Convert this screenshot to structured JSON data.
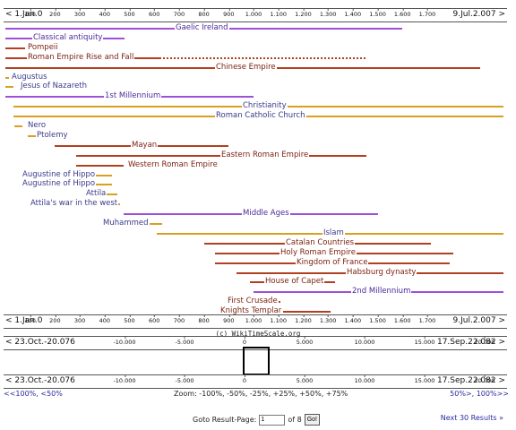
{
  "timeline": {
    "top_axis": {
      "left": "< 1.Jan.0",
      "right": "9.Jul.2.007 >",
      "ticks": [
        "100",
        "200",
        "300",
        "400",
        "500",
        "600",
        "700",
        "800",
        "900",
        "1.000",
        "1.100",
        "1.200",
        "1.300",
        "1.400",
        "1.500",
        "1.600",
        "1.700"
      ]
    },
    "bottom_axis": {
      "left": "< 1.Jan.0",
      "right": "9.Jul.2.007 >",
      "ticks": [
        "100",
        "200",
        "300",
        "400",
        "500",
        "600",
        "700",
        "800",
        "900",
        "1.000",
        "1.100",
        "1.200",
        "1.300",
        "1.400",
        "1.500",
        "1.600",
        "1.700"
      ]
    },
    "copyright": "(c) WikiTimeScale.org",
    "events": [
      {
        "label": "Gaelic Ireland",
        "color": "#a050d8",
        "start": 0,
        "end": 1600,
        "dashed_after": null
      },
      {
        "label": "Classical antiquity",
        "color": "#a050d8",
        "start": 0,
        "end": 480
      },
      {
        "label": "Pompeii",
        "color": "#b04020",
        "start": 0,
        "end": 79
      },
      {
        "label": "Roman Empire Rise and Fall",
        "color": "#b04020",
        "start": 0,
        "end": 620,
        "dashed_to": 1453
      },
      {
        "label": "Chinese Empire",
        "color": "#b04020",
        "start": 0,
        "end": 1912
      },
      {
        "label": "Augustus",
        "color": "#d8a020",
        "start": 0,
        "end": 14
      },
      {
        "label": "Jesus of Nazareth",
        "color": "#d8a020",
        "start": 0,
        "end": 33
      },
      {
        "label": "1st Millennium",
        "color": "#a050d8",
        "start": 1,
        "end": 1000
      },
      {
        "label": "Christianity",
        "color": "#d8a020",
        "start": 33,
        "end": 2007
      },
      {
        "label": "Roman Catholic Church",
        "color": "#d8a020",
        "start": 33,
        "end": 2007
      },
      {
        "label": "Nero",
        "color": "#d8a020",
        "start": 37,
        "end": 68
      },
      {
        "label": "Ptolemy",
        "color": "#d8a020",
        "start": 90,
        "end": 168
      },
      {
        "label": "Mayan",
        "color": "#b04020",
        "start": 200,
        "end": 900
      },
      {
        "label": "Eastern Roman Empire",
        "color": "#b04020",
        "start": 286,
        "end": 1453
      },
      {
        "label": "Western Roman Empire",
        "color": "#b04020",
        "start": 286,
        "end": 476
      },
      {
        "label": "Augustine of Hippo",
        "color": "#d8a020",
        "start": 354,
        "end": 430
      },
      {
        "label": "Augustine of Hippo",
        "color": "#d8a020",
        "start": 354,
        "end": 430
      },
      {
        "label": "Attila",
        "color": "#d8a020",
        "start": 406,
        "end": 453
      },
      {
        "label": "Attila's war in the west",
        "color": "#d8a020",
        "start": 450,
        "end": 453
      },
      {
        "label": "Middle Ages",
        "color": "#a050d8",
        "start": 476,
        "end": 1500
      },
      {
        "label": "Muhammed",
        "color": "#d8a020",
        "start": 570,
        "end": 632
      },
      {
        "label": "Islam",
        "color": "#d8a020",
        "start": 610,
        "end": 2007
      },
      {
        "label": "Catalan Countries",
        "color": "#b04020",
        "start": 800,
        "end": 1714
      },
      {
        "label": "Holy Roman Empire",
        "color": "#b04020",
        "start": 843,
        "end": 1806
      },
      {
        "label": "Kingdom of France",
        "color": "#b04020",
        "start": 843,
        "end": 1792
      },
      {
        "label": "Habsburg dynasty",
        "color": "#b04020",
        "start": 930,
        "end": 2007
      },
      {
        "label": "House of Capet",
        "color": "#b04020",
        "start": 987,
        "end": 1328
      },
      {
        "label": "2nd Millennium",
        "color": "#a050d8",
        "start": 1001,
        "end": 2007
      },
      {
        "label": "First Crusade",
        "color": "#b04020",
        "start": 1096,
        "end": 1099
      },
      {
        "label": "Knights Templar",
        "color": "#b04020",
        "start": 1119,
        "end": 1312
      }
    ]
  },
  "overview": {
    "top": {
      "left": "< 23.Oct.-20.076",
      "right": "17.Sep.22.082 >",
      "ticks": [
        "-10.000",
        "-5.000",
        "0",
        "5.000",
        "10.000",
        "15.000",
        "20.000"
      ]
    },
    "bottom": {
      "left": "< 23.Oct.-20.076",
      "right": "17.Sep.22.082 >",
      "ticks": [
        "-10.000",
        "-5.000",
        "0",
        "5.000",
        "10.000",
        "15.000",
        "20.000"
      ]
    }
  },
  "zoom": {
    "left": "<<100%, <50%",
    "center": "Zoom: -100%, -50%, -25%, +25%, +50%, +75%",
    "right": "50%>, 100%>>"
  },
  "pager": {
    "goto_label": "Goto Result-Page:",
    "page_value": "1",
    "of_label": "of 8",
    "go_button": "Go!",
    "next_link": "Next 30 Results »"
  }
}
